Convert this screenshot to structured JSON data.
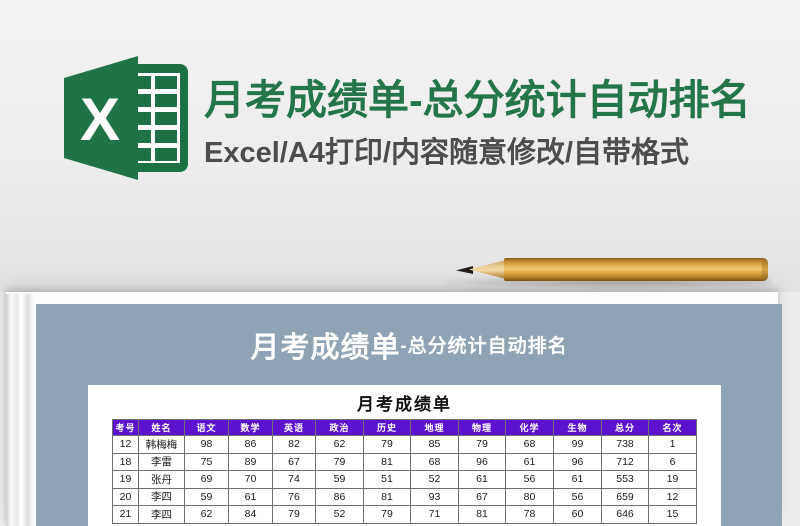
{
  "hero": {
    "title": "月考成绩单-总分统计自动排名",
    "subtitle": "Excel/A4打印/内容随意修改/自带格式",
    "logo_letter": "X"
  },
  "preview": {
    "banner_title_main": "月考成绩单",
    "banner_title_sub": "-总分统计自动排名",
    "sheet_title": "月考成绩单",
    "table": {
      "headers": [
        "考号",
        "姓名",
        "语文",
        "数学",
        "英语",
        "政治",
        "历史",
        "地理",
        "物理",
        "化学",
        "生物",
        "总分",
        "名次"
      ],
      "rows": [
        [
          "12",
          "韩梅梅",
          "98",
          "86",
          "82",
          "62",
          "79",
          "85",
          "79",
          "68",
          "99",
          "738",
          "1"
        ],
        [
          "18",
          "李雷",
          "75",
          "89",
          "67",
          "79",
          "81",
          "68",
          "96",
          "61",
          "96",
          "712",
          "6"
        ],
        [
          "19",
          "张丹",
          "69",
          "70",
          "74",
          "59",
          "51",
          "52",
          "61",
          "56",
          "61",
          "553",
          "19"
        ],
        [
          "20",
          "李四",
          "59",
          "61",
          "76",
          "86",
          "81",
          "93",
          "67",
          "80",
          "56",
          "659",
          "12"
        ],
        [
          "21",
          "李四",
          "62",
          "84",
          "79",
          "52",
          "79",
          "71",
          "81",
          "78",
          "60",
          "646",
          "15"
        ]
      ]
    }
  },
  "colors": {
    "excel_green": "#217346",
    "hero_title_green": "#24754a",
    "subtitle_gray": "#4d4d4d",
    "banner_slate": "#8fa3b4",
    "table_header_purple": "#5b13d0",
    "pencil_wood": "#e5b258"
  }
}
